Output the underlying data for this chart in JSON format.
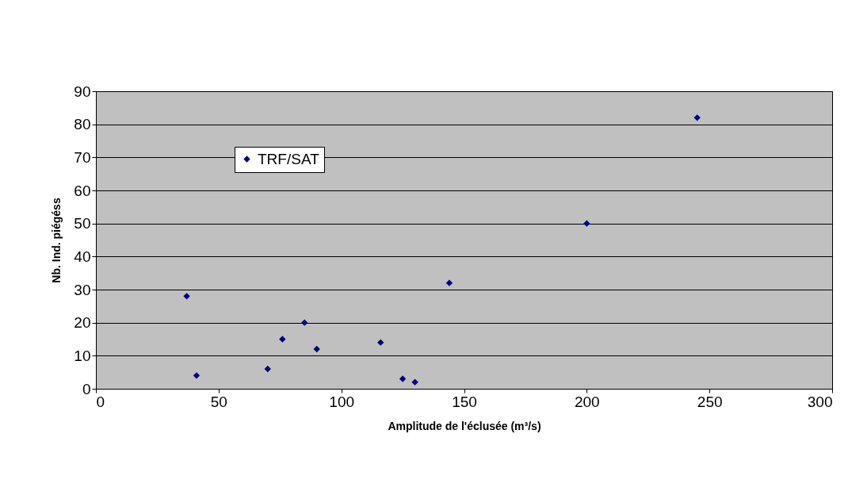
{
  "chart_data": {
    "type": "scatter",
    "xlabel": "Amplitude de l'éclusée (m³/s)",
    "ylabel": "Nb. Ind. piégéss",
    "xlim": [
      0,
      300
    ],
    "xticks": [
      0,
      50,
      100,
      150,
      200,
      250,
      300
    ],
    "ylim": [
      0,
      90
    ],
    "yticks": [
      0,
      10,
      20,
      30,
      40,
      50,
      60,
      70,
      80,
      90
    ],
    "grid": "y",
    "legend": "top left",
    "marker": "diamond",
    "x": [
      37,
      41,
      70,
      76,
      85,
      90,
      116,
      125,
      130,
      144,
      200,
      245
    ],
    "series": [
      {
        "name": "TRF/SAT",
        "color": "#000080",
        "values": [
          28,
          4,
          6,
          15,
          20,
          12,
          14,
          3,
          2,
          32,
          50,
          82
        ]
      }
    ]
  }
}
